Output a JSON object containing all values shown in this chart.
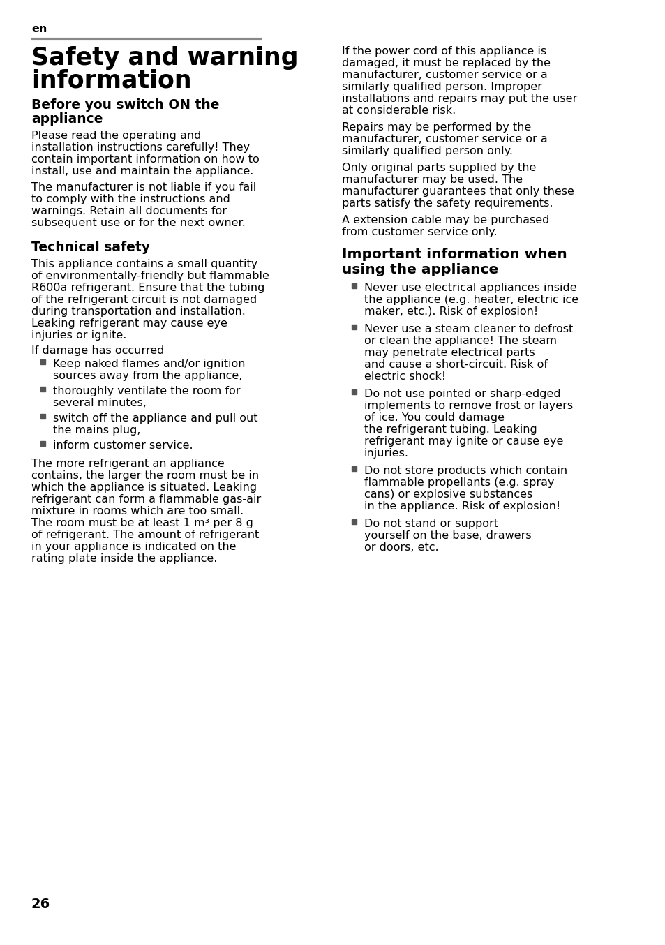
{
  "bg_color": "#ffffff",
  "text_color": "#000000",
  "bullet_color": "#555555",
  "separator_color": "#888888",
  "page_number": "26",
  "lang_tag": "en",
  "main_title_line1": "Safety and warning",
  "main_title_line2": "information",
  "section1_title_line1": "Before you switch ON the",
  "section1_title_line2": "appliance",
  "section1_para1": "Please read the operating and\ninstallation instructions carefully! They\ncontain important information on how to\ninstall, use and maintain the appliance.",
  "section1_para2": "The manufacturer is not liable if you fail\nto comply with the instructions and\nwarnings. Retain all documents for\nsubsequent use or for the next owner.",
  "section2_title": "Technical safety",
  "section2_para1_lines": [
    "This appliance contains a small quantity",
    "of environmentally-friendly but flammable",
    "R600a refrigerant. Ensure that the tubing",
    "of the refrigerant circuit is not damaged",
    "during transportation and installation.",
    "Leaking refrigerant may cause eye",
    "injuries or ignite."
  ],
  "section2_subdiv": "If damage has occurred",
  "section2_bullets": [
    [
      "Keep naked flames and/or ignition",
      "sources away from the appliance,"
    ],
    [
      "thoroughly ventilate the room for",
      "several minutes,"
    ],
    [
      "switch off the appliance and pull out",
      "the mains plug,"
    ],
    [
      "inform customer service."
    ]
  ],
  "section2_para2_lines": [
    "The more refrigerant an appliance",
    "contains, the larger the room must be in",
    "which the appliance is situated. Leaking",
    "refrigerant can form a flammable gas-air",
    "mixture in rooms which are too small.",
    "The room must be at least 1 m³ per 8 g",
    "of refrigerant. The amount of refrigerant",
    "in your appliance is indicated on the",
    "rating plate inside the appliance."
  ],
  "right_para1_lines": [
    "If the power cord of this appliance is",
    "damaged, it must be replaced by the",
    "manufacturer, customer service or a",
    "similarly qualified person. Improper",
    "installations and repairs may put the user",
    "at considerable risk."
  ],
  "right_para2_lines": [
    "Repairs may be performed by the",
    "manufacturer, customer service or a",
    "similarly qualified person only."
  ],
  "right_para3_lines": [
    "Only original parts supplied by the",
    "manufacturer may be used. The",
    "manufacturer guarantees that only these",
    "parts satisfy the safety requirements."
  ],
  "right_para4_lines": [
    "A extension cable may be purchased",
    "from customer service only."
  ],
  "section3_title_line1": "Important information when",
  "section3_title_line2": "using the appliance",
  "section3_bullets": [
    [
      "Never use electrical appliances inside",
      "the appliance (e.g. heater, electric ice",
      "maker, etc.). Risk of explosion!"
    ],
    [
      "Never use a steam cleaner to defrost",
      "or clean the appliance! The steam",
      "may penetrate electrical parts",
      "and cause a short-circuit. Risk of",
      "electric shock!"
    ],
    [
      "Do not use pointed or sharp-edged",
      "implements to remove frost or layers",
      "of ice. You could damage",
      "the refrigerant tubing. Leaking",
      "refrigerant may ignite or cause eye",
      "injuries."
    ],
    [
      "Do not store products which contain",
      "flammable propellants (e.g. spray",
      "cans) or explosive substances",
      "in the appliance. Risk of explosion!"
    ],
    [
      "Do not stand or support",
      "yourself on the base, drawers",
      "or doors, etc."
    ]
  ]
}
